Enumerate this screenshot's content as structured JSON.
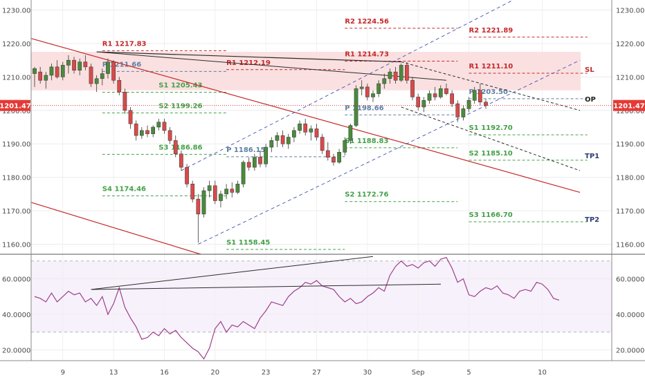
{
  "chart_data": [
    {
      "type": "candlestick",
      "title": "",
      "xlabel": "",
      "ylabel": "",
      "ylim": [
        1157,
        1233
      ],
      "price_ticks": [
        "1230.00",
        "1220.00",
        "1210.00",
        "1200.00",
        "1190.00",
        "1180.00",
        "1170.00",
        "1160.00"
      ],
      "date_ticks": [
        "9",
        "13",
        "16",
        "20",
        "23",
        "27",
        "30",
        "Sep",
        "5",
        "10"
      ],
      "current_price": "1201.47",
      "candles": [
        {
          "o": 1211.0,
          "h": 1213.0,
          "l": 1207.0,
          "c": 1212.5
        },
        {
          "o": 1211.5,
          "h": 1213.0,
          "l": 1208.0,
          "c": 1209.0
        },
        {
          "o": 1209.0,
          "h": 1211.5,
          "l": 1206.5,
          "c": 1210.5
        },
        {
          "o": 1210.5,
          "h": 1214.0,
          "l": 1209.0,
          "c": 1213.0
        },
        {
          "o": 1213.0,
          "h": 1215.0,
          "l": 1209.5,
          "c": 1210.0
        },
        {
          "o": 1210.0,
          "h": 1214.5,
          "l": 1209.0,
          "c": 1213.5
        },
        {
          "o": 1213.5,
          "h": 1216.5,
          "l": 1211.0,
          "c": 1215.0
        },
        {
          "o": 1215.0,
          "h": 1216.0,
          "l": 1211.0,
          "c": 1212.0
        },
        {
          "o": 1212.0,
          "h": 1215.5,
          "l": 1210.5,
          "c": 1214.5
        },
        {
          "o": 1214.5,
          "h": 1216.5,
          "l": 1212.0,
          "c": 1213.0
        },
        {
          "o": 1213.0,
          "h": 1214.0,
          "l": 1207.0,
          "c": 1208.0
        },
        {
          "o": 1208.0,
          "h": 1210.5,
          "l": 1205.5,
          "c": 1209.5
        },
        {
          "o": 1209.5,
          "h": 1212.5,
          "l": 1207.5,
          "c": 1211.0
        },
        {
          "o": 1211.0,
          "h": 1215.5,
          "l": 1209.5,
          "c": 1214.5
        },
        {
          "o": 1214.5,
          "h": 1215.0,
          "l": 1208.0,
          "c": 1209.0
        },
        {
          "o": 1209.0,
          "h": 1210.0,
          "l": 1204.5,
          "c": 1205.5
        },
        {
          "o": 1205.5,
          "h": 1206.5,
          "l": 1199.0,
          "c": 1200.0
        },
        {
          "o": 1200.0,
          "h": 1201.0,
          "l": 1194.5,
          "c": 1196.0
        },
        {
          "o": 1196.0,
          "h": 1197.0,
          "l": 1191.0,
          "c": 1192.5
        },
        {
          "o": 1192.5,
          "h": 1195.0,
          "l": 1191.5,
          "c": 1194.0
        },
        {
          "o": 1194.0,
          "h": 1195.5,
          "l": 1192.0,
          "c": 1193.0
        },
        {
          "o": 1193.0,
          "h": 1195.5,
          "l": 1192.0,
          "c": 1195.0
        },
        {
          "o": 1195.0,
          "h": 1197.5,
          "l": 1194.0,
          "c": 1196.5
        },
        {
          "o": 1196.5,
          "h": 1197.5,
          "l": 1193.0,
          "c": 1194.0
        },
        {
          "o": 1194.0,
          "h": 1195.0,
          "l": 1190.0,
          "c": 1191.0
        },
        {
          "o": 1191.0,
          "h": 1192.5,
          "l": 1186.0,
          "c": 1187.0
        },
        {
          "o": 1187.0,
          "h": 1188.0,
          "l": 1182.0,
          "c": 1183.0
        },
        {
          "o": 1183.0,
          "h": 1184.0,
          "l": 1177.0,
          "c": 1178.0
        },
        {
          "o": 1178.0,
          "h": 1179.0,
          "l": 1172.5,
          "c": 1173.5
        },
        {
          "o": 1173.5,
          "h": 1175.0,
          "l": 1160.5,
          "c": 1169.0
        },
        {
          "o": 1169.0,
          "h": 1177.0,
          "l": 1168.0,
          "c": 1176.0
        },
        {
          "o": 1176.0,
          "h": 1179.0,
          "l": 1174.0,
          "c": 1177.5
        },
        {
          "o": 1177.5,
          "h": 1179.0,
          "l": 1172.0,
          "c": 1173.0
        },
        {
          "o": 1173.0,
          "h": 1176.0,
          "l": 1171.0,
          "c": 1175.0
        },
        {
          "o": 1175.0,
          "h": 1178.0,
          "l": 1173.5,
          "c": 1176.5
        },
        {
          "o": 1176.5,
          "h": 1178.5,
          "l": 1174.0,
          "c": 1175.5
        },
        {
          "o": 1175.5,
          "h": 1179.0,
          "l": 1175.0,
          "c": 1178.0
        },
        {
          "o": 1178.0,
          "h": 1185.0,
          "l": 1177.0,
          "c": 1184.5
        },
        {
          "o": 1184.5,
          "h": 1186.0,
          "l": 1182.0,
          "c": 1183.0
        },
        {
          "o": 1183.0,
          "h": 1187.0,
          "l": 1182.0,
          "c": 1186.0
        },
        {
          "o": 1186.0,
          "h": 1188.0,
          "l": 1183.0,
          "c": 1184.0
        },
        {
          "o": 1184.0,
          "h": 1190.0,
          "l": 1183.0,
          "c": 1189.0
        },
        {
          "o": 1189.0,
          "h": 1192.0,
          "l": 1187.5,
          "c": 1191.0
        },
        {
          "o": 1191.0,
          "h": 1193.5,
          "l": 1189.0,
          "c": 1192.5
        },
        {
          "o": 1192.5,
          "h": 1194.0,
          "l": 1189.0,
          "c": 1190.0
        },
        {
          "o": 1190.0,
          "h": 1193.0,
          "l": 1188.5,
          "c": 1192.0
        },
        {
          "o": 1192.0,
          "h": 1195.0,
          "l": 1190.5,
          "c": 1194.0
        },
        {
          "o": 1194.0,
          "h": 1197.0,
          "l": 1193.0,
          "c": 1196.0
        },
        {
          "o": 1196.0,
          "h": 1197.5,
          "l": 1192.5,
          "c": 1193.5
        },
        {
          "o": 1193.5,
          "h": 1195.5,
          "l": 1191.0,
          "c": 1194.5
        },
        {
          "o": 1194.5,
          "h": 1196.0,
          "l": 1191.0,
          "c": 1192.0
        },
        {
          "o": 1192.0,
          "h": 1193.0,
          "l": 1187.0,
          "c": 1188.0
        },
        {
          "o": 1188.0,
          "h": 1190.5,
          "l": 1185.0,
          "c": 1186.0
        },
        {
          "o": 1186.0,
          "h": 1187.0,
          "l": 1183.5,
          "c": 1184.5
        },
        {
          "o": 1184.5,
          "h": 1188.5,
          "l": 1184.0,
          "c": 1187.5
        },
        {
          "o": 1187.5,
          "h": 1192.0,
          "l": 1186.5,
          "c": 1191.0
        },
        {
          "o": 1191.0,
          "h": 1196.0,
          "l": 1190.0,
          "c": 1195.5
        },
        {
          "o": 1195.5,
          "h": 1207.5,
          "l": 1195.0,
          "c": 1206.5
        },
        {
          "o": 1206.5,
          "h": 1209.0,
          "l": 1204.5,
          "c": 1207.0
        },
        {
          "o": 1207.0,
          "h": 1208.0,
          "l": 1203.0,
          "c": 1204.0
        },
        {
          "o": 1204.0,
          "h": 1206.0,
          "l": 1202.5,
          "c": 1205.0
        },
        {
          "o": 1205.0,
          "h": 1209.0,
          "l": 1204.0,
          "c": 1208.0
        },
        {
          "o": 1208.0,
          "h": 1211.0,
          "l": 1206.5,
          "c": 1209.5
        },
        {
          "o": 1209.5,
          "h": 1212.5,
          "l": 1208.0,
          "c": 1211.5
        },
        {
          "o": 1211.5,
          "h": 1213.0,
          "l": 1208.0,
          "c": 1209.0
        },
        {
          "o": 1209.0,
          "h": 1214.0,
          "l": 1208.5,
          "c": 1213.5
        },
        {
          "o": 1213.5,
          "h": 1214.5,
          "l": 1208.0,
          "c": 1209.0
        },
        {
          "o": 1209.0,
          "h": 1210.0,
          "l": 1203.0,
          "c": 1204.0
        },
        {
          "o": 1204.0,
          "h": 1205.0,
          "l": 1200.0,
          "c": 1201.0
        },
        {
          "o": 1201.0,
          "h": 1204.0,
          "l": 1199.5,
          "c": 1203.0
        },
        {
          "o": 1203.0,
          "h": 1206.0,
          "l": 1202.0,
          "c": 1205.0
        },
        {
          "o": 1205.0,
          "h": 1207.0,
          "l": 1203.0,
          "c": 1204.0
        },
        {
          "o": 1204.0,
          "h": 1207.5,
          "l": 1203.5,
          "c": 1206.5
        },
        {
          "o": 1206.5,
          "h": 1208.0,
          "l": 1204.5,
          "c": 1205.0
        },
        {
          "o": 1205.0,
          "h": 1206.0,
          "l": 1201.0,
          "c": 1202.0
        },
        {
          "o": 1202.0,
          "h": 1203.0,
          "l": 1196.5,
          "c": 1198.0
        },
        {
          "o": 1198.0,
          "h": 1201.5,
          "l": 1197.0,
          "c": 1200.5
        },
        {
          "o": 1200.5,
          "h": 1204.0,
          "l": 1199.5,
          "c": 1203.0
        },
        {
          "o": 1203.0,
          "h": 1207.0,
          "l": 1202.0,
          "c": 1206.0
        },
        {
          "o": 1206.0,
          "h": 1208.0,
          "l": 1201.5,
          "c": 1202.5
        },
        {
          "o": 1202.5,
          "h": 1203.5,
          "l": 1200.5,
          "c": 1201.47
        }
      ]
    },
    {
      "type": "line",
      "title": "",
      "ylim": [
        14,
        73
      ],
      "ticks": [
        "60.0000",
        "40.0000",
        "20.0000"
      ],
      "guide_levels": [
        70,
        30
      ],
      "values": [
        50,
        49,
        47,
        52,
        47,
        50,
        53,
        51,
        52,
        47,
        49,
        45,
        50,
        40,
        46,
        55,
        44,
        38,
        33,
        26,
        27,
        30,
        28,
        32,
        29,
        31,
        27,
        24,
        21,
        19,
        15,
        21,
        32,
        36,
        30,
        34,
        33,
        36,
        34,
        32,
        38,
        42,
        47,
        46,
        45,
        50,
        53,
        55,
        58,
        57,
        59,
        56,
        55,
        54,
        50,
        47,
        49,
        46,
        47,
        50,
        52,
        55,
        53,
        62,
        67,
        70,
        67,
        68,
        66,
        69,
        70,
        67,
        71,
        72,
        66,
        58,
        60,
        51,
        50,
        53,
        55,
        54,
        56,
        52,
        51,
        49,
        53,
        54,
        53,
        58,
        57,
        54,
        49,
        48
      ]
    }
  ],
  "levels": [
    {
      "text": "R2 1224.56",
      "color": "red"
    },
    {
      "text": "R2 1221.89",
      "color": "red"
    },
    {
      "text": "R1 1217.83",
      "color": "red"
    },
    {
      "text": "R1 1214.73",
      "color": "red"
    },
    {
      "text": "R1 1212.19",
      "color": "red"
    },
    {
      "text": "R1 1211.10",
      "color": "red"
    },
    {
      "text": "P 1211.66",
      "color": "blue"
    },
    {
      "text": "P 1203.50",
      "color": "blue"
    },
    {
      "text": "P 1198.66",
      "color": "blue"
    },
    {
      "text": "P 1186.15",
      "color": "blue"
    },
    {
      "text": "S1 1205.43",
      "color": "green"
    },
    {
      "text": "S2 1199.26",
      "color": "green"
    },
    {
      "text": "S3 1186.86",
      "color": "green"
    },
    {
      "text": "S4 1174.46",
      "color": "green"
    },
    {
      "text": "S1 1192.70",
      "color": "green"
    },
    {
      "text": "S1 1188.83",
      "color": "green"
    },
    {
      "text": "S2 1185.10",
      "color": "green"
    },
    {
      "text": "S2 1172.76",
      "color": "green"
    },
    {
      "text": "S3 1166.70",
      "color": "green"
    },
    {
      "text": "S1 1158.45",
      "color": "green"
    }
  ],
  "tags": {
    "sl": "SL",
    "op": "OP",
    "tp1": "TP1",
    "tp2": "TP2"
  },
  "colors": {
    "up": "#4a8a3c",
    "down": "#d94a4a",
    "red": "#c62828",
    "green": "#43a047",
    "blue": "#5c7fa6",
    "zone": "#f9dada",
    "rsi": "#9c3f8b",
    "channel": "#3f51b5",
    "trend": "#c62828",
    "navy": "#2c3e70"
  }
}
